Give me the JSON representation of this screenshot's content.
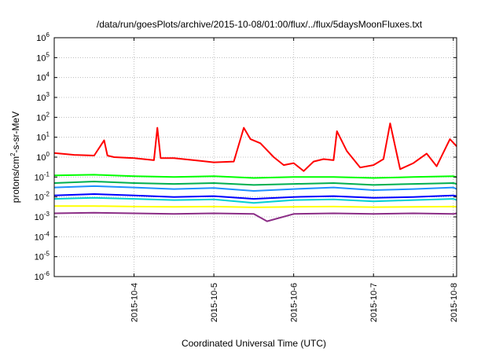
{
  "chart_data": {
    "type": "line",
    "title": "/data/run/goesPlots/archive/2015-10-08/01:00/flux/../flux/5daysMoonFluxes.txt",
    "xlabel": "Coordinated Universal Time (UTC)",
    "ylabel": {
      "pre": "protons/cm",
      "sup": "2",
      "post": "-s-sr-MeV"
    },
    "y_scale": "log",
    "ylim": [
      1e-06,
      1000000.0
    ],
    "xlim": [
      "2015-10-03 00:00",
      "2015-10-08 01:00"
    ],
    "x_ticks": [
      "2015-10-4",
      "2015-10-5",
      "2015-10-6",
      "2015-10-7",
      "2015-10-8"
    ],
    "y_ticks": [
      {
        "base": "10",
        "exp": "-6"
      },
      {
        "base": "10",
        "exp": "-5"
      },
      {
        "base": "10",
        "exp": "-4"
      },
      {
        "base": "10",
        "exp": "-3"
      },
      {
        "base": "10",
        "exp": "-2"
      },
      {
        "base": "10",
        "exp": "-1"
      },
      {
        "base": "10",
        "exp": "0"
      },
      {
        "base": "10",
        "exp": "1"
      },
      {
        "base": "10",
        "exp": "2"
      },
      {
        "base": "10",
        "exp": "3"
      },
      {
        "base": "10",
        "exp": "4"
      },
      {
        "base": "10",
        "exp": "5"
      },
      {
        "base": "10",
        "exp": "6"
      }
    ],
    "grid": true,
    "series": [
      {
        "color": "#ff0000",
        "x": [
          "2015-10-03 00:00",
          "2015-10-03 06:00",
          "2015-10-03 12:00",
          "2015-10-03 15:00",
          "2015-10-03 16:00",
          "2015-10-03 18:00",
          "2015-10-04 00:00",
          "2015-10-04 06:00",
          "2015-10-04 07:00",
          "2015-10-04 08:00",
          "2015-10-04 12:00",
          "2015-10-04 18:00",
          "2015-10-05 00:00",
          "2015-10-05 06:00",
          "2015-10-05 09:00",
          "2015-10-05 11:00",
          "2015-10-05 14:00",
          "2015-10-05 18:00",
          "2015-10-05 21:00",
          "2015-10-06 00:00",
          "2015-10-06 03:00",
          "2015-10-06 06:00",
          "2015-10-06 09:00",
          "2015-10-06 12:00",
          "2015-10-06 13:00",
          "2015-10-06 16:00",
          "2015-10-06 20:00",
          "2015-10-07 00:00",
          "2015-10-07 03:00",
          "2015-10-07 05:00",
          "2015-10-07 08:00",
          "2015-10-07 12:00",
          "2015-10-07 16:00",
          "2015-10-07 19:00",
          "2015-10-07 23:00",
          "2015-10-08 01:00"
        ],
        "y": [
          1.6,
          1.3,
          1.2,
          7.0,
          1.2,
          1.0,
          0.9,
          0.7,
          30,
          0.9,
          0.9,
          0.7,
          0.55,
          0.6,
          30,
          8.0,
          5.0,
          1.0,
          0.4,
          0.5,
          0.2,
          0.6,
          0.8,
          0.7,
          20,
          2.0,
          0.3,
          0.4,
          0.8,
          50,
          0.25,
          0.5,
          1.5,
          0.35,
          8.0,
          3.5
        ]
      },
      {
        "color": "#00ff00",
        "x": [
          "2015-10-03 00:00",
          "2015-10-03 12:00",
          "2015-10-04 00:00",
          "2015-10-04 12:00",
          "2015-10-05 00:00",
          "2015-10-05 12:00",
          "2015-10-06 00:00",
          "2015-10-06 12:00",
          "2015-10-07 00:00",
          "2015-10-07 12:00",
          "2015-10-08 00:00",
          "2015-10-08 01:00"
        ],
        "y": [
          0.12,
          0.13,
          0.11,
          0.1,
          0.11,
          0.09,
          0.1,
          0.1,
          0.09,
          0.1,
          0.11,
          0.1
        ]
      },
      {
        "color": "#00b050",
        "x": [
          "2015-10-03 00:00",
          "2015-10-03 12:00",
          "2015-10-04 00:00",
          "2015-10-04 12:00",
          "2015-10-05 00:00",
          "2015-10-05 12:00",
          "2015-10-06 00:00",
          "2015-10-06 12:00",
          "2015-10-07 00:00",
          "2015-10-07 12:00",
          "2015-10-08 00:00",
          "2015-10-08 01:00"
        ],
        "y": [
          0.05,
          0.06,
          0.05,
          0.045,
          0.05,
          0.04,
          0.045,
          0.05,
          0.04,
          0.045,
          0.05,
          0.045
        ]
      },
      {
        "color": "#1e90ff",
        "x": [
          "2015-10-03 00:00",
          "2015-10-03 12:00",
          "2015-10-04 00:00",
          "2015-10-04 12:00",
          "2015-10-05 00:00",
          "2015-10-05 12:00",
          "2015-10-06 00:00",
          "2015-10-06 12:00",
          "2015-10-07 00:00",
          "2015-10-07 12:00",
          "2015-10-08 00:00",
          "2015-10-08 01:00"
        ],
        "y": [
          0.03,
          0.035,
          0.03,
          0.025,
          0.028,
          0.02,
          0.025,
          0.03,
          0.022,
          0.025,
          0.03,
          0.025
        ]
      },
      {
        "color": "#0000ff",
        "x": [
          "2015-10-03 00:00",
          "2015-10-03 12:00",
          "2015-10-04 00:00",
          "2015-10-04 12:00",
          "2015-10-05 00:00",
          "2015-10-05 12:00",
          "2015-10-06 00:00",
          "2015-10-06 12:00",
          "2015-10-07 00:00",
          "2015-10-07 12:00",
          "2015-10-08 00:00",
          "2015-10-08 01:00"
        ],
        "y": [
          0.012,
          0.014,
          0.012,
          0.01,
          0.011,
          0.008,
          0.01,
          0.011,
          0.009,
          0.01,
          0.012,
          0.011
        ]
      },
      {
        "color": "#00d0d0",
        "x": [
          "2015-10-03 00:00",
          "2015-10-03 12:00",
          "2015-10-04 00:00",
          "2015-10-04 12:00",
          "2015-10-05 00:00",
          "2015-10-05 12:00",
          "2015-10-06 00:00",
          "2015-10-06 12:00",
          "2015-10-07 00:00",
          "2015-10-07 12:00",
          "2015-10-08 00:00",
          "2015-10-08 01:00"
        ],
        "y": [
          0.008,
          0.009,
          0.008,
          0.007,
          0.0075,
          0.005,
          0.007,
          0.0075,
          0.006,
          0.007,
          0.008,
          0.007
        ]
      },
      {
        "color": "#ffff00",
        "x": [
          "2015-10-03 00:00",
          "2015-10-03 12:00",
          "2015-10-04 00:00",
          "2015-10-04 12:00",
          "2015-10-05 00:00",
          "2015-10-05 12:00",
          "2015-10-06 00:00",
          "2015-10-06 12:00",
          "2015-10-07 00:00",
          "2015-10-07 12:00",
          "2015-10-08 00:00",
          "2015-10-08 01:00"
        ],
        "y": [
          0.0035,
          0.0035,
          0.0033,
          0.0032,
          0.0033,
          0.003,
          0.0032,
          0.0033,
          0.0031,
          0.0032,
          0.0033,
          0.0032
        ]
      },
      {
        "color": "#8b2d86",
        "x": [
          "2015-10-03 00:00",
          "2015-10-03 12:00",
          "2015-10-04 00:00",
          "2015-10-04 12:00",
          "2015-10-05 00:00",
          "2015-10-05 12:00",
          "2015-10-05 16:00",
          "2015-10-06 00:00",
          "2015-10-06 12:00",
          "2015-10-07 00:00",
          "2015-10-07 12:00",
          "2015-10-08 00:00",
          "2015-10-08 01:00"
        ],
        "y": [
          0.0015,
          0.0016,
          0.0015,
          0.0014,
          0.0015,
          0.0014,
          0.0006,
          0.0014,
          0.0015,
          0.0014,
          0.0015,
          0.0014,
          0.0015
        ]
      }
    ]
  }
}
